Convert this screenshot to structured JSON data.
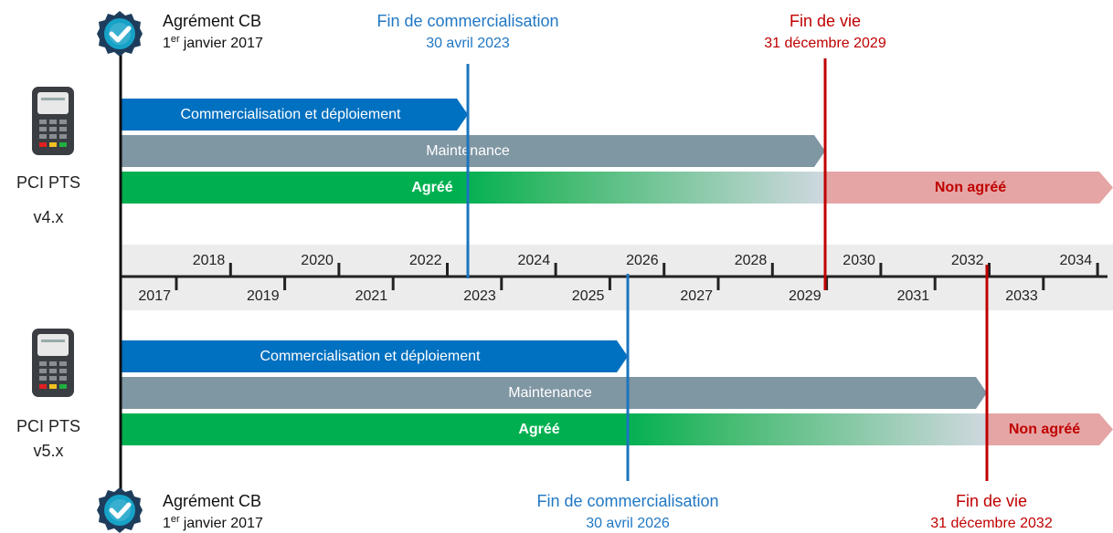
{
  "top_labels": {
    "agrement": {
      "title": "Agrément CB",
      "date_day": "1",
      "date_suffix": "er",
      "date_rest": "janvier 2017"
    },
    "fin_commercialisation": {
      "title": "Fin de commercialisation",
      "date": "30 avril 2023"
    },
    "fin_de_vie": {
      "title": "Fin de vie",
      "date": "31 décembre 2029"
    }
  },
  "axis": {
    "years": [
      2017,
      2018,
      2019,
      2020,
      2021,
      2022,
      2023,
      2024,
      2025,
      2026,
      2027,
      2028,
      2029,
      2030,
      2031,
      2032,
      2033,
      2034
    ]
  },
  "products": [
    {
      "name": "PCI PTS",
      "version": "v4.x",
      "commercialisation": "Commercialisation et déploiement",
      "maintenance": "Maintenance",
      "agree": "Agréé",
      "non_agree": "Non agréé"
    },
    {
      "name": "PCI PTS",
      "version": "v5.x",
      "commercialisation": "Commercialisation et déploiement",
      "maintenance": "Maintenance",
      "agree": "Agréé",
      "non_agree": "Non agréé"
    }
  ],
  "bottom_labels": {
    "agrement": {
      "title": "Agrément CB",
      "date_day": "1",
      "date_suffix": "er",
      "date_rest": "janvier 2017"
    },
    "fin_commercialisation": {
      "title": "Fin de commercialisation",
      "date": "30 avril 2026"
    },
    "fin_de_vie": {
      "title": "Fin de vie",
      "date": "31 décembre 2032"
    }
  }
}
